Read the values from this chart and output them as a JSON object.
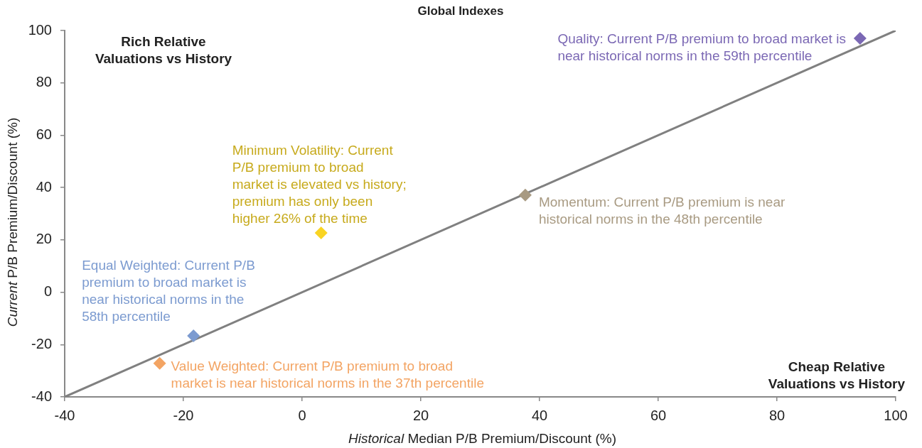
{
  "chart_data": {
    "type": "scatter",
    "title": "Global Indexes",
    "xlabel": "Historical Median P/B Premium/Discount (%)",
    "ylabel": "Current P/B Premium/Discount (%)",
    "xlim": [
      -40,
      100
    ],
    "xticks": [
      -40,
      -20,
      0,
      20,
      40,
      60,
      80,
      100
    ],
    "ylim": [
      -40,
      100
    ],
    "yticks": [
      -40,
      -20,
      0,
      20,
      40,
      60,
      80,
      100
    ],
    "marker": "diamond",
    "annotations": [
      "Rich Relative\nValuations vs History",
      "Cheap Relative\nValuations vs History"
    ],
    "series": [
      {
        "type": "line",
        "color": "#808080",
        "marker": "none",
        "x": [
          -40,
          100
        ],
        "values": [
          -40,
          100
        ]
      },
      {
        "name": "Quality: Current P/B premium to broad market is\nnear historical norms in the 59th percentile",
        "color": "#7b68b4",
        "x": [
          94.0
        ],
        "values": [
          97.0
        ]
      },
      {
        "name": "Minimum Volatility: Current\nP/B premium to broad\nmarket is elevated vs history;\npremium has only been\nhigher 26% of the time",
        "color": "#f9d423",
        "x": [
          3.2
        ],
        "values": [
          22.7
        ]
      },
      {
        "name": "Momentum: Current P/B premium is near\nhistorical norms in the 48th percentile",
        "color": "#a89a82",
        "x": [
          37.6
        ],
        "values": [
          37.1
        ]
      },
      {
        "name": "Equal Weighted: Current P/B\npremium to broad market is\nnear historical norms in the\n58th percentile",
        "color": "#7c9bd0",
        "x": [
          -18.3
        ],
        "values": [
          -16.7
        ]
      },
      {
        "name": "Value Weighted: Current P/B premium to broad\nmarket is near historical norms in the 37th percentile",
        "color": "#f3a463",
        "x": [
          -24.0
        ],
        "values": [
          -27.2
        ]
      }
    ]
  }
}
